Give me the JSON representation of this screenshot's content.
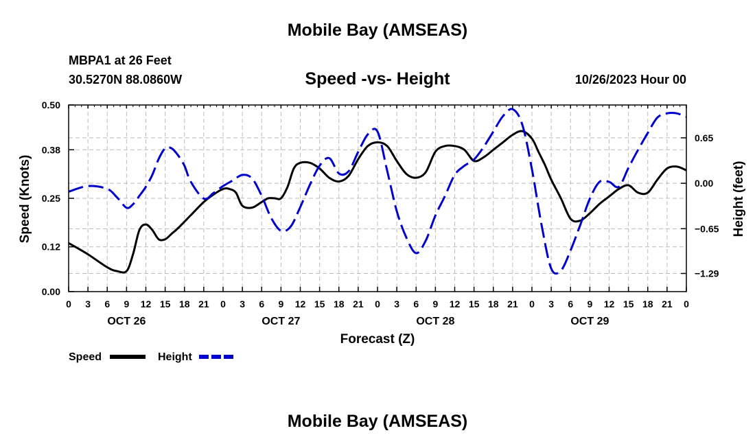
{
  "header": {
    "title": "Mobile Bay (AMSEAS)",
    "station": "MBPA1 at 26 Feet",
    "coords": "30.5270N  88.0860W",
    "subtitle": "Speed -vs- Height",
    "datetime": "10/26/2023 Hour 00"
  },
  "footer": {
    "title": "Mobile Bay (AMSEAS)"
  },
  "chart_data": {
    "type": "line",
    "title": "Speed -vs- Height",
    "xlabel": "Forecast (Z)",
    "ylabel": "Speed (Knots)",
    "y2label": "Height (feet)",
    "x_hours_range": [
      0,
      96
    ],
    "x_tick_labels": [
      "0",
      "3",
      "6",
      "9",
      "12",
      "15",
      "18",
      "21",
      "0",
      "3",
      "6",
      "9",
      "12",
      "15",
      "18",
      "21",
      "0",
      "3",
      "6",
      "9",
      "12",
      "15",
      "18",
      "21",
      "0",
      "3",
      "6",
      "9",
      "12",
      "15",
      "18",
      "21",
      "0"
    ],
    "day_labels": [
      "OCT 26",
      "OCT 27",
      "OCT 28",
      "OCT 29"
    ],
    "ylim": [
      0,
      0.5
    ],
    "y_ticks": [
      "0.00",
      "0.12",
      "0.25",
      "0.38",
      "0.50"
    ],
    "y2lim": [
      -1.55,
      1.12
    ],
    "y2_ticks": [
      "0.65",
      "0.00",
      "−0.65",
      "−1.29"
    ],
    "grid": true,
    "legend_position": "bottom-left",
    "series": [
      {
        "name": "Speed",
        "color": "#000000",
        "style": "solid",
        "axis": "left",
        "x": [
          0,
          3,
          6,
          7.5,
          9,
          10,
          11,
          12,
          13,
          14,
          15,
          16,
          17,
          19,
          21,
          22.5,
          24,
          25,
          26,
          27,
          28.5,
          30,
          31,
          32,
          33,
          34,
          35,
          36,
          37.5,
          39,
          40.5,
          42,
          43.5,
          45,
          46.5,
          48,
          49.5,
          51,
          52.5,
          54,
          55.5,
          57,
          58.5,
          60,
          61.5,
          63,
          64.5,
          66,
          67.5,
          69,
          70.5,
          72,
          73,
          74,
          75,
          76.5,
          78,
          79.5,
          81,
          82.5,
          84,
          85.5,
          87,
          88.5,
          90,
          91.5,
          93,
          94.5,
          96
        ],
        "values": [
          0.13,
          0.1,
          0.065,
          0.055,
          0.055,
          0.1,
          0.165,
          0.18,
          0.165,
          0.14,
          0.14,
          0.155,
          0.17,
          0.205,
          0.24,
          0.26,
          0.275,
          0.275,
          0.265,
          0.23,
          0.225,
          0.24,
          0.25,
          0.25,
          0.25,
          0.28,
          0.33,
          0.345,
          0.345,
          0.33,
          0.305,
          0.295,
          0.31,
          0.355,
          0.39,
          0.4,
          0.39,
          0.35,
          0.315,
          0.305,
          0.32,
          0.375,
          0.39,
          0.39,
          0.38,
          0.35,
          0.36,
          0.38,
          0.4,
          0.42,
          0.43,
          0.41,
          0.375,
          0.34,
          0.3,
          0.25,
          0.195,
          0.19,
          0.21,
          0.235,
          0.255,
          0.275,
          0.285,
          0.265,
          0.265,
          0.3,
          0.33,
          0.335,
          0.325
        ]
      },
      {
        "name": "Height",
        "color": "#0000cc",
        "style": "dashed",
        "axis": "right",
        "x": [
          0,
          3,
          6,
          7.5,
          9,
          10,
          11,
          12,
          13,
          14,
          15,
          16,
          17,
          18,
          19,
          21,
          22.5,
          24,
          25.5,
          27,
          28.5,
          30,
          31.5,
          33,
          34.5,
          36,
          37.5,
          39,
          40.5,
          42,
          43.5,
          45,
          46.5,
          48,
          49.5,
          51,
          52.5,
          54,
          55.5,
          57,
          58.5,
          60,
          61.5,
          63,
          64.5,
          66,
          67.5,
          69,
          70.5,
          72,
          73.5,
          75,
          76.5,
          78,
          79.5,
          81,
          82.5,
          84,
          85.5,
          87,
          88.5,
          90,
          91.5,
          93,
          94.5,
          96
        ],
        "values": [
          -0.12,
          -0.04,
          -0.08,
          -0.2,
          -0.35,
          -0.3,
          -0.18,
          -0.05,
          0.12,
          0.35,
          0.5,
          0.5,
          0.4,
          0.25,
          0.02,
          -0.22,
          -0.14,
          -0.04,
          0.04,
          0.12,
          0.07,
          -0.18,
          -0.5,
          -0.68,
          -0.62,
          -0.34,
          -0.02,
          0.25,
          0.36,
          0.14,
          0.17,
          0.45,
          0.7,
          0.74,
          0.18,
          -0.4,
          -0.78,
          -1.0,
          -0.82,
          -0.46,
          -0.18,
          0.12,
          0.25,
          0.34,
          0.52,
          0.74,
          0.96,
          1.06,
          0.84,
          0.2,
          -0.6,
          -1.22,
          -1.25,
          -0.96,
          -0.6,
          -0.22,
          0.02,
          0.02,
          -0.05,
          0.22,
          0.48,
          0.72,
          0.94,
          1.0,
          1.0,
          0.95
        ]
      }
    ]
  }
}
